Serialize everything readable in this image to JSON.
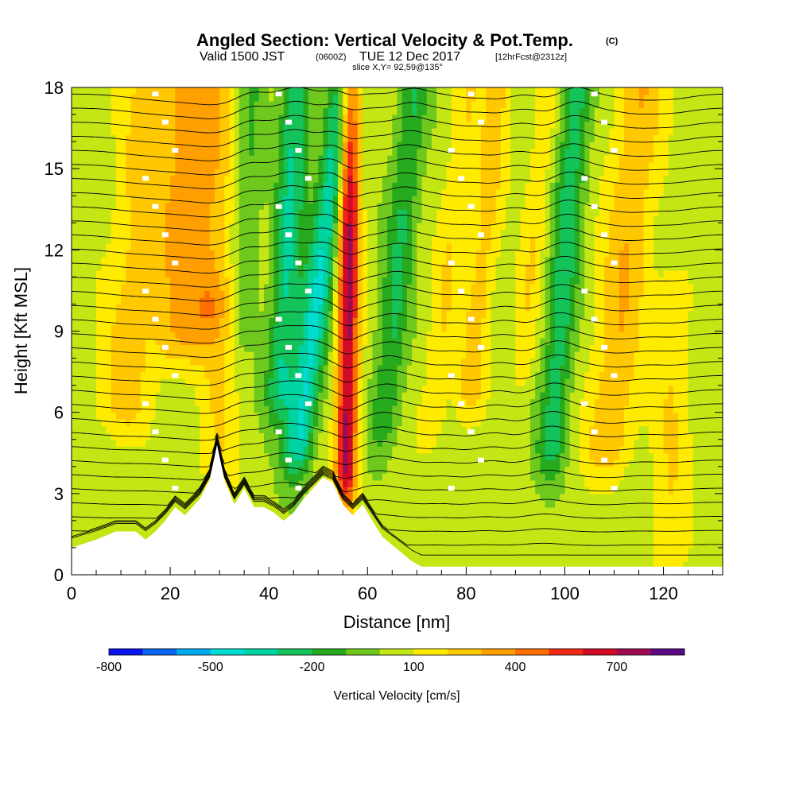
{
  "chart_data": {
    "type": "heatmap",
    "title": "Angled Section: Vertical Velocity & Pot.Temp.",
    "title_suffix": "(C)",
    "subtitle": {
      "prefix": "Valid 1500 JST",
      "zulu": "(0600Z)",
      "date": "TUE 12 Dec 2017",
      "forecast": "[12hrFcst@2312z]"
    },
    "slice_label": "slice X,Y= 92,59@135°",
    "xlabel": "Distance [nm]",
    "ylabel": "Height [Kft MSL]",
    "xlim": [
      0,
      132
    ],
    "ylim": [
      0,
      18
    ],
    "x_ticks": [
      "0",
      "20",
      "40",
      "60",
      "80",
      "100",
      "120"
    ],
    "y_ticks": [
      "0",
      "3",
      "6",
      "9",
      "12",
      "15",
      "18"
    ],
    "colorbar": {
      "label": "Vertical Velocity [cm/s]",
      "tick_labels": [
        "-800",
        "-500",
        "-200",
        "100",
        "400",
        "700"
      ],
      "levels": [
        -800,
        -700,
        -600,
        -500,
        -400,
        -300,
        -200,
        -100,
        0,
        100,
        200,
        300,
        400,
        500,
        600,
        700,
        800
      ],
      "colors": [
        "#0a14f0",
        "#0a64f0",
        "#00aaee",
        "#00dcd2",
        "#00d2a0",
        "#14c35a",
        "#28aa1e",
        "#6ec81e",
        "#c3e614",
        "#ffeb00",
        "#ffc800",
        "#ffa000",
        "#ff6e00",
        "#f02814",
        "#d20a28",
        "#a00a50",
        "#5a0a82"
      ]
    },
    "vertical_velocity_features": [
      {
        "x": 12,
        "width": 6,
        "z_bottom": 6.5,
        "z_top": 18,
        "w": 200,
        "tilt": 0.45
      },
      {
        "x": 22,
        "width": 5,
        "z_bottom": 9,
        "z_top": 18,
        "w": 250,
        "tilt": 0.2
      },
      {
        "x": 28,
        "width": 4,
        "z_bottom": 10,
        "z_top": 18,
        "w": 200,
        "tilt": 0.15
      },
      {
        "x": 35,
        "width": 2.5,
        "z_bottom": 10,
        "z_top": 18,
        "w": -150,
        "tilt": 0.15
      },
      {
        "x": 43,
        "width": 3,
        "z_bottom": 7,
        "z_top": 18,
        "w": -350,
        "tilt": 0.3
      },
      {
        "x": 49,
        "width": 3,
        "z_bottom": 5,
        "z_top": 18,
        "w": -450,
        "tilt": 0.7
      },
      {
        "x": 56,
        "width": 2.2,
        "z_bottom": 4,
        "z_top": 18,
        "w": 700,
        "tilt": 0.05
      },
      {
        "x": 65,
        "width": 3,
        "z_bottom": 6,
        "z_top": 18,
        "w": -250,
        "tilt": 0.5
      },
      {
        "x": 75,
        "width": 3,
        "z_bottom": 6,
        "z_top": 18,
        "w": 150,
        "tilt": 0.6
      },
      {
        "x": 82,
        "width": 3,
        "z_bottom": 7,
        "z_top": 18,
        "w": 200,
        "tilt": 0.5
      },
      {
        "x": 92,
        "width": 2.5,
        "z_bottom": 8,
        "z_top": 18,
        "w": 150,
        "tilt": 0.5
      },
      {
        "x": 99,
        "width": 3,
        "z_bottom": 5,
        "z_top": 18,
        "w": -300,
        "tilt": 0.4
      },
      {
        "x": 111,
        "width": 5,
        "z_bottom": 5,
        "z_top": 18,
        "w": 250,
        "tilt": 0.5
      },
      {
        "x": 122,
        "width": 4,
        "z_bottom": 1,
        "z_top": 10,
        "w": 150,
        "tilt": 0.1
      },
      {
        "x": 30,
        "width": 4,
        "z_bottom": 4,
        "z_top": 10,
        "w": 150,
        "tilt": 0.1
      }
    ],
    "terrain": {
      "x": [
        0,
        5,
        9,
        13,
        15,
        17,
        19,
        21,
        23,
        26,
        28,
        29.5,
        31,
        33,
        35,
        37,
        39,
        41,
        43,
        45,
        47,
        49,
        51,
        53,
        55,
        57,
        59,
        61,
        63,
        65,
        67,
        69,
        71,
        75,
        80,
        90,
        100,
        110,
        120,
        132
      ],
      "height_kft": [
        1.0,
        1.3,
        1.6,
        1.6,
        1.3,
        1.6,
        2.0,
        2.5,
        2.2,
        2.8,
        3.5,
        4.8,
        3.5,
        2.6,
        3.2,
        2.5,
        2.5,
        2.3,
        2.0,
        2.3,
        2.8,
        3.2,
        3.6,
        3.4,
        2.6,
        2.2,
        2.6,
        2.0,
        1.4,
        1.1,
        0.8,
        0.5,
        0.3,
        0.3,
        0.3,
        0.3,
        0.3,
        0.3,
        0.3,
        0.3
      ]
    },
    "pot_temp_contours": {
      "count": 34,
      "base_kft": 0.6,
      "spacing_kft": 0.52,
      "label_interval": 2
    },
    "grid": false,
    "legend_placement": "bottom colorbar"
  }
}
